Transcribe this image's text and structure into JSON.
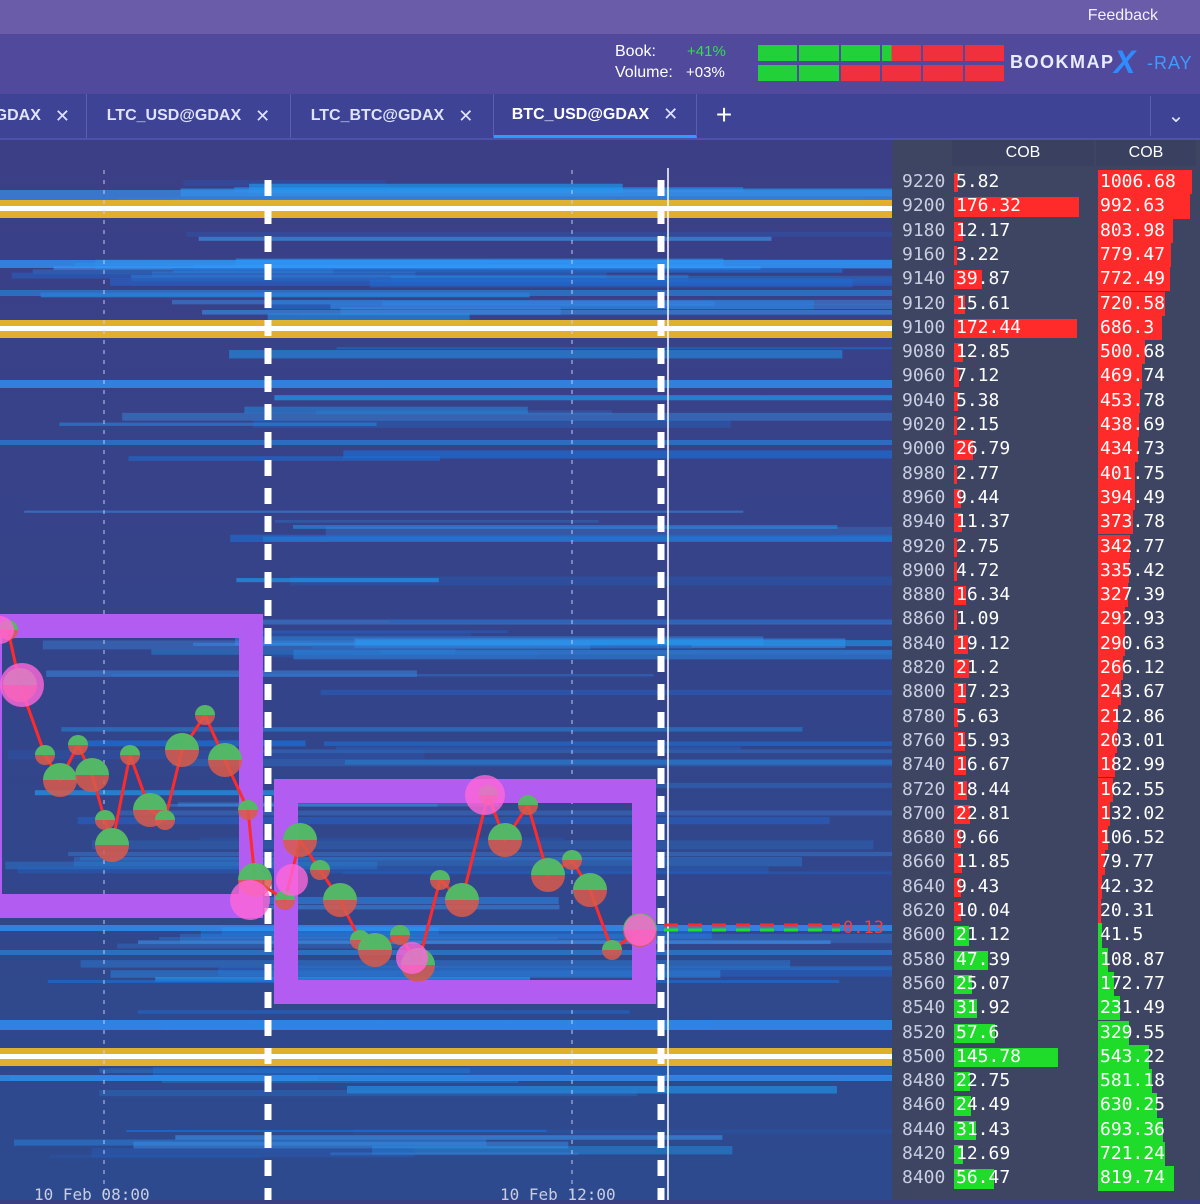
{
  "topbar": {
    "feedback_label": "Feedback"
  },
  "stats": {
    "book_label": "Book:",
    "book_value": "+41%",
    "volume_label": "Volume:",
    "volume_value": "+03%"
  },
  "meters": {
    "book": [
      "green",
      "green",
      "green",
      "mixed",
      "red",
      "red"
    ],
    "volume": [
      "green",
      "green",
      "red",
      "red",
      "red",
      "red"
    ]
  },
  "brand": {
    "name": "BOOKMAP",
    "x": "X",
    "ray": "-RAY"
  },
  "tabs": [
    {
      "label": "GDAX",
      "close": "✕"
    },
    {
      "label": "LTC_USD@GDAX",
      "close": "✕"
    },
    {
      "label": "LTC_BTC@GDAX",
      "close": "✕"
    },
    {
      "label": "BTC_USD@GDAX",
      "close": "✕",
      "active": true
    }
  ],
  "tab_add": "+",
  "tab_dropdown": "⌄",
  "orderbook": {
    "col1_title": "COB",
    "col2_title": "COB",
    "rows": [
      {
        "price": "9220",
        "cob": "5.82",
        "cum": "1006.68",
        "side": "ask"
      },
      {
        "price": "9200",
        "cob": "176.32",
        "cum": "992.63",
        "side": "ask"
      },
      {
        "price": "9180",
        "cob": "12.17",
        "cum": "803.98",
        "side": "ask"
      },
      {
        "price": "9160",
        "cob": "3.22",
        "cum": "779.47",
        "side": "ask"
      },
      {
        "price": "9140",
        "cob": "39.87",
        "cum": "772.49",
        "side": "ask"
      },
      {
        "price": "9120",
        "cob": "15.61",
        "cum": "720.58",
        "side": "ask"
      },
      {
        "price": "9100",
        "cob": "172.44",
        "cum": "686.3",
        "side": "ask"
      },
      {
        "price": "9080",
        "cob": "12.85",
        "cum": "500.68",
        "side": "ask"
      },
      {
        "price": "9060",
        "cob": "7.12",
        "cum": "469.74",
        "side": "ask"
      },
      {
        "price": "9040",
        "cob": "5.38",
        "cum": "453.78",
        "side": "ask"
      },
      {
        "price": "9020",
        "cob": "2.15",
        "cum": "438.69",
        "side": "ask"
      },
      {
        "price": "9000",
        "cob": "26.79",
        "cum": "434.73",
        "side": "ask"
      },
      {
        "price": "8980",
        "cob": "2.77",
        "cum": "401.75",
        "side": "ask"
      },
      {
        "price": "8960",
        "cob": "9.44",
        "cum": "394.49",
        "side": "ask"
      },
      {
        "price": "8940",
        "cob": "11.37",
        "cum": "373.78",
        "side": "ask"
      },
      {
        "price": "8920",
        "cob": "2.75",
        "cum": "342.77",
        "side": "ask"
      },
      {
        "price": "8900",
        "cob": "4.72",
        "cum": "335.42",
        "side": "ask"
      },
      {
        "price": "8880",
        "cob": "16.34",
        "cum": "327.39",
        "side": "ask"
      },
      {
        "price": "8860",
        "cob": "1.09",
        "cum": "292.93",
        "side": "ask"
      },
      {
        "price": "8840",
        "cob": "19.12",
        "cum": "290.63",
        "side": "ask"
      },
      {
        "price": "8820",
        "cob": "21.2",
        "cum": "266.12",
        "side": "ask"
      },
      {
        "price": "8800",
        "cob": "17.23",
        "cum": "243.67",
        "side": "ask"
      },
      {
        "price": "8780",
        "cob": "5.63",
        "cum": "212.86",
        "side": "ask"
      },
      {
        "price": "8760",
        "cob": "15.93",
        "cum": "203.01",
        "side": "ask"
      },
      {
        "price": "8740",
        "cob": "16.67",
        "cum": "182.99",
        "side": "ask"
      },
      {
        "price": "8720",
        "cob": "18.44",
        "cum": "162.55",
        "side": "ask"
      },
      {
        "price": "8700",
        "cob": "22.81",
        "cum": "132.02",
        "side": "ask"
      },
      {
        "price": "8680",
        "cob": "9.66",
        "cum": "106.52",
        "side": "ask"
      },
      {
        "price": "8660",
        "cob": "11.85",
        "cum": "79.77",
        "side": "ask"
      },
      {
        "price": "8640",
        "cob": "9.43",
        "cum": "42.32",
        "side": "ask"
      },
      {
        "price": "8620",
        "cob": "10.04",
        "cum": "20.31",
        "side": "ask"
      },
      {
        "price": "8600",
        "cob": "21.12",
        "cum": "41.5",
        "side": "bid"
      },
      {
        "price": "8580",
        "cob": "47.39",
        "cum": "108.87",
        "side": "bid"
      },
      {
        "price": "8560",
        "cob": "25.07",
        "cum": "172.77",
        "side": "bid"
      },
      {
        "price": "8540",
        "cob": "31.92",
        "cum": "231.49",
        "side": "bid"
      },
      {
        "price": "8520",
        "cob": "57.6",
        "cum": "329.55",
        "side": "bid"
      },
      {
        "price": "8500",
        "cob": "145.78",
        "cum": "543.22",
        "side": "bid"
      },
      {
        "price": "8480",
        "cob": "22.75",
        "cum": "581.18",
        "side": "bid"
      },
      {
        "price": "8460",
        "cob": "24.49",
        "cum": "630.25",
        "side": "bid"
      },
      {
        "price": "8440",
        "cob": "31.43",
        "cum": "693.36",
        "side": "bid"
      },
      {
        "price": "8420",
        "cob": "12.69",
        "cum": "721.24",
        "side": "bid"
      },
      {
        "price": "8400",
        "cob": "56.47",
        "cum": "819.74",
        "side": "bid"
      }
    ]
  },
  "last_trade_label": "0.13",
  "time_labels": [
    "10 Feb 08:00",
    "10 Feb 12:00"
  ],
  "colors": {
    "ask": "#ff2b2b",
    "bid": "#1fdc2a",
    "box": "#b25cf2",
    "level": "#ffc21f"
  }
}
